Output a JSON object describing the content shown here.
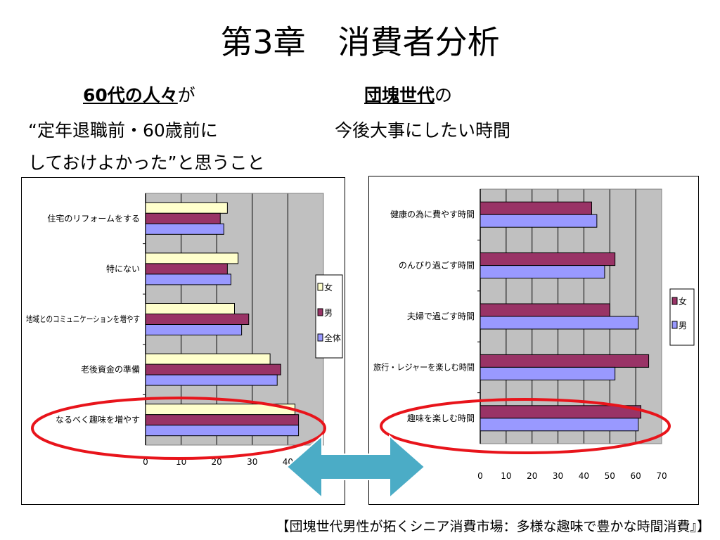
{
  "slide": {
    "title": "第3章　消費者分析",
    "left_heading": {
      "underlined": "60代の人々",
      "rest": "が"
    },
    "left_line2": "“定年退職前・60歳前に",
    "left_line3": "しておけよかった”と思うこと",
    "right_heading": {
      "underlined": "団塊世代",
      "rest": "の"
    },
    "right_line2": "今後大事にしたい時間",
    "source": "【団塊世代男性が拓くシニア消費市場：多様な趣味で豊かな時間消費』】"
  },
  "colors": {
    "female": "#ffffcc",
    "male": "#993366",
    "all": "#9999ff",
    "highlight": "#e8141b",
    "arrow": "#4bacc6"
  },
  "icons": [
    "double-arrow-icon"
  ],
  "chart_data": [
    {
      "type": "bar",
      "orientation": "horizontal",
      "categories": [
        "住宅のリフォームをする",
        "特にない",
        "地域とのコミュニケーションを増やす",
        "老後資金の準備",
        "なるべく趣味を増やす"
      ],
      "series": [
        {
          "name": "女",
          "values": [
            23,
            26,
            25,
            35,
            42
          ]
        },
        {
          "name": "男",
          "values": [
            21,
            23,
            29,
            38,
            43
          ]
        },
        {
          "name": "全体",
          "values": [
            22,
            24,
            27,
            37,
            43
          ]
        }
      ],
      "xticks": [
        "0",
        "10",
        "20",
        "30",
        "40"
      ],
      "xlim": [
        0,
        50
      ],
      "grid": true,
      "legend": "right",
      "highlight_category": "なるべく趣味を増やす"
    },
    {
      "type": "bar",
      "orientation": "horizontal",
      "categories": [
        "健康の為に費やす時間",
        "のんびり過ごす時間",
        "夫婦で過ごす時間",
        "旅行・レジャーを楽しむ時間",
        "趣味を楽しむ時間"
      ],
      "series": [
        {
          "name": "女",
          "values": [
            43,
            52,
            50,
            65,
            62
          ]
        },
        {
          "name": "男",
          "values": [
            45,
            48,
            61,
            52,
            61
          ]
        }
      ],
      "xticks": [
        "0",
        "10",
        "20",
        "30",
        "40",
        "50",
        "60",
        "70"
      ],
      "xlim": [
        0,
        70
      ],
      "grid": true,
      "legend": "right",
      "highlight_category": "趣味を楽しむ時間"
    }
  ]
}
